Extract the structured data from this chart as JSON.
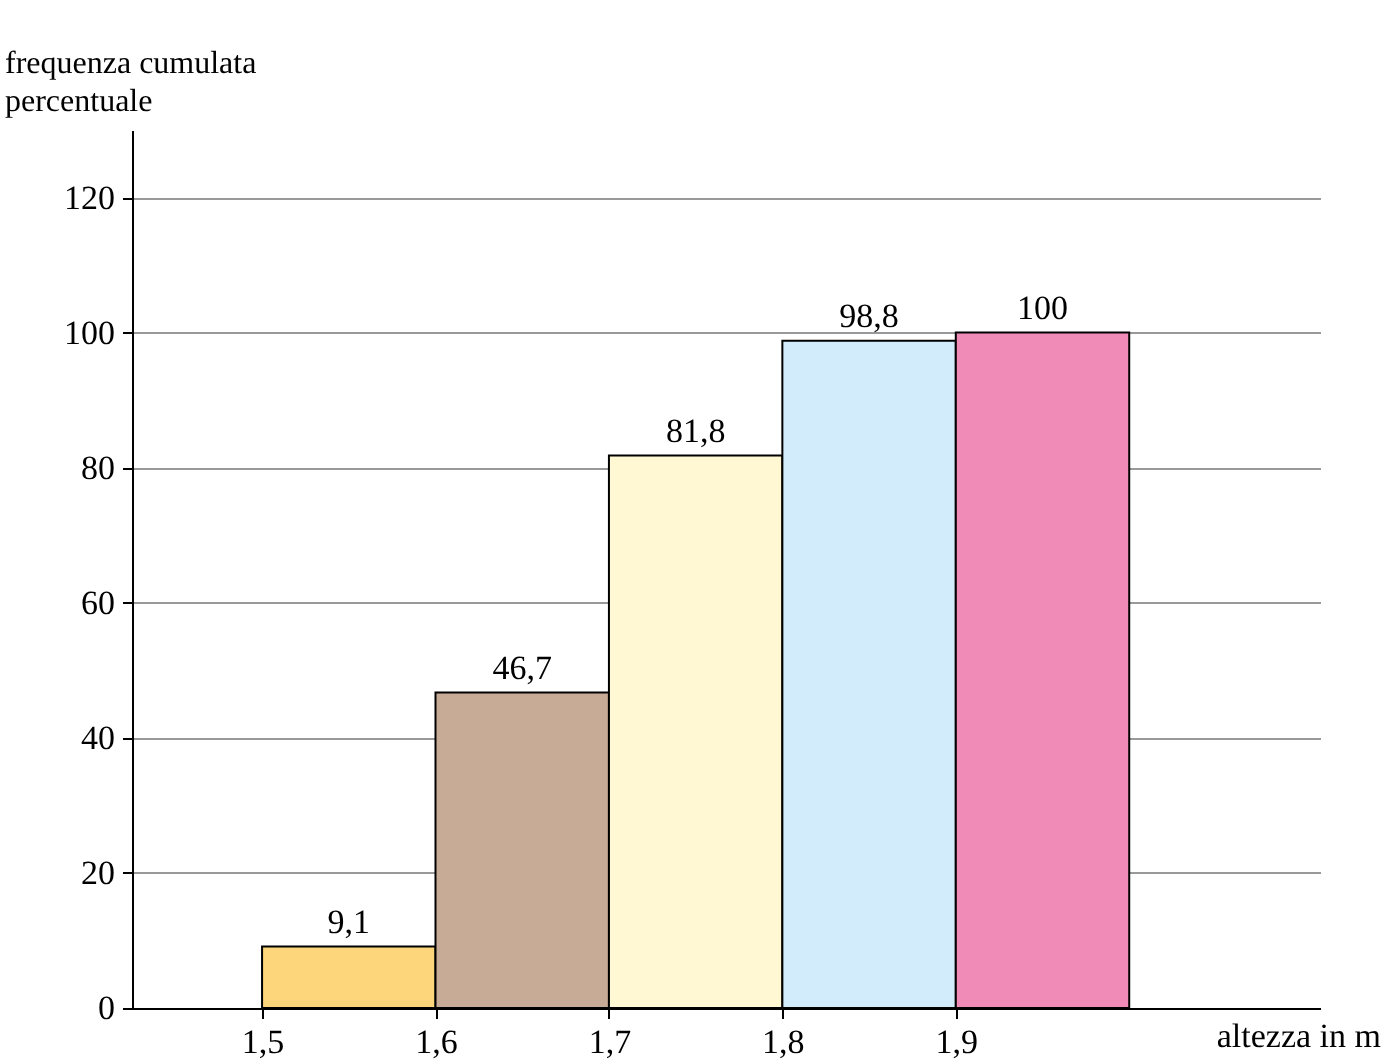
{
  "chart_data": {
    "type": "histogram",
    "xlabel": "altezza in m",
    "ylabel": "frequenza cumulata\npercentuale",
    "bins": [
      1.5,
      1.6,
      1.7,
      1.8,
      1.9,
      2.0
    ],
    "values": [
      9.1,
      46.7,
      81.8,
      98.8,
      100
    ],
    "value_labels": [
      "9,1",
      "46,7",
      "81,8",
      "98,8",
      "100"
    ],
    "colors": [
      "#fdd57a",
      "#c8ab96",
      "#fff8d2",
      "#d2ecfb",
      "#f08bb8"
    ],
    "xlim": [
      1.425,
      2.11
    ],
    "xticks": [
      {
        "value": 1.5,
        "label": "1,5"
      },
      {
        "value": 1.6,
        "label": "1,6"
      },
      {
        "value": 1.7,
        "label": "1,7"
      },
      {
        "value": 1.8,
        "label": "1,8"
      },
      {
        "value": 1.9,
        "label": "1,9"
      }
    ],
    "ylim": [
      0,
      130
    ],
    "yticks": [
      0,
      20,
      40,
      60,
      80,
      100,
      120
    ],
    "grid": "y"
  }
}
